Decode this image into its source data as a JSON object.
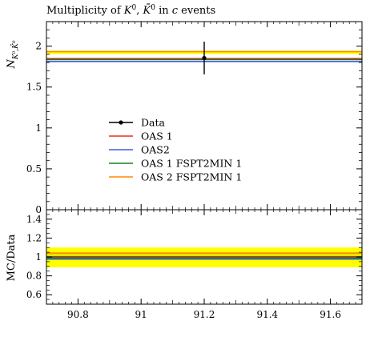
{
  "chart_data": [
    {
      "type": "line",
      "title": "Multiplicity of K⁰, K̄⁰ in c events",
      "title_parts": {
        "prefix": "Multiplicity of ",
        "k": "K",
        "zero": "0",
        "sep": ", ",
        "kbar": "K̄",
        "zero2": "0",
        "mid": " in ",
        "c": "c",
        "suffix": " events"
      },
      "ylabel_parts": {
        "n": "N",
        "sub": "K⁰,K̄⁰"
      },
      "xlim": [
        90.7,
        91.7
      ],
      "ylim": [
        0,
        2.3
      ],
      "yticks": [
        0,
        0.5,
        1,
        1.5,
        2
      ],
      "ytick_labels": [
        "0",
        "0.5",
        "1",
        "1.5",
        "2"
      ],
      "legend_position": "center-left",
      "data_point": {
        "x": 91.2,
        "y": 1.855,
        "yerr_low": 0.2,
        "yerr_high": 0.2
      },
      "series": [
        {
          "name": "Data",
          "color": "#000000",
          "kind": "points"
        },
        {
          "name": "OAS 1",
          "color": "#e8301c",
          "y": 1.848
        },
        {
          "name": "OAS2",
          "color": "#3a5fe0",
          "y": 1.812
        },
        {
          "name": "OAS 1 FSPT2MIN 1",
          "color": "#1b7f1b",
          "y": 1.835
        },
        {
          "name": "OAS 2 FSPT2MIN 1",
          "color": "#ff8c00",
          "y": 1.932
        }
      ],
      "band": {
        "low": 1.905,
        "high": 1.945,
        "color": "#ffff00"
      }
    },
    {
      "type": "line",
      "ylabel": "MC/Data",
      "xlim": [
        90.7,
        91.7
      ],
      "ylim": [
        0.5,
        1.5
      ],
      "xticks": [
        90.8,
        91,
        91.2,
        91.4,
        91.6
      ],
      "xtick_labels": [
        "90.8",
        "91",
        "91.2",
        "91.4",
        "91.6"
      ],
      "yticks": [
        0.6,
        0.8,
        1,
        1.2,
        1.4
      ],
      "ytick_labels": [
        "0.6",
        "0.8",
        "1",
        "1.2",
        "1.4"
      ],
      "bands": [
        {
          "low": 0.89,
          "high": 1.1,
          "color": "#ffff00"
        },
        {
          "low": 1.0,
          "high": 1.05,
          "color": "#e8e000"
        }
      ],
      "series": [
        {
          "name": "Data",
          "color": "#000000",
          "y": 1.0
        },
        {
          "name": "OAS 1",
          "color": "#e8301c",
          "y": 0.996
        },
        {
          "name": "OAS2",
          "color": "#3a5fe0",
          "y": 0.977
        },
        {
          "name": "OAS 1 FSPT2MIN 1",
          "color": "#1b7f1b",
          "y": 0.989
        },
        {
          "name": "OAS 2 FSPT2MIN 1",
          "color": "#ff8c00",
          "y": 1.041
        }
      ]
    }
  ]
}
